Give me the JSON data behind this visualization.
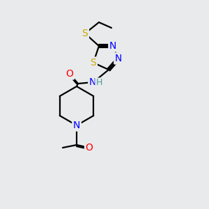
{
  "bg_color": "#e8eaec",
  "atom_colors": {
    "C": "#000000",
    "H": "#4a9a9a",
    "N": "#0000ff",
    "O": "#ff0000",
    "S": "#ccaa00"
  },
  "bond_color": "#000000",
  "figsize": [
    3.0,
    3.0
  ],
  "dpi": 100,
  "lw": 1.6,
  "fontsize": 10
}
